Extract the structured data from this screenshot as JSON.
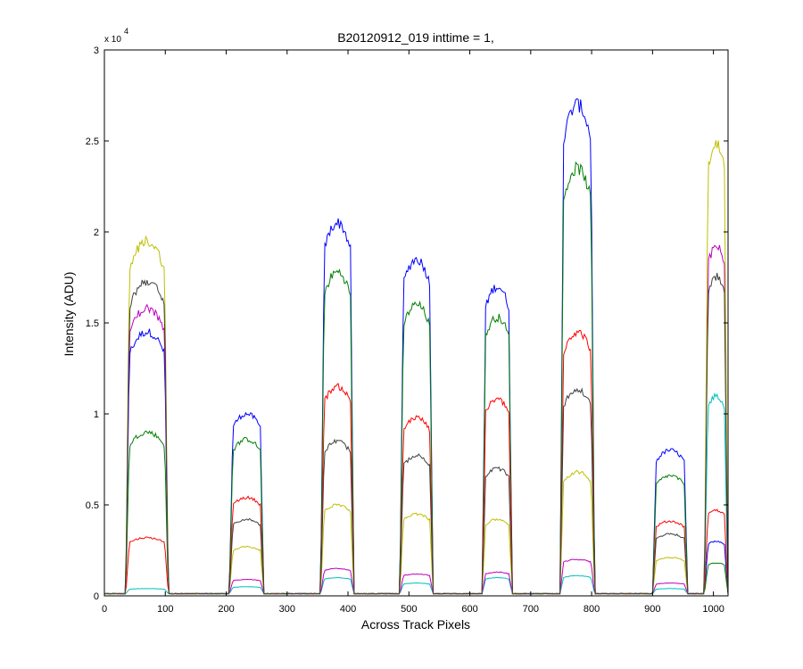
{
  "chart_data": {
    "type": "line",
    "title": "B20120912_019 inttime = 1,",
    "xlabel": "Across Track Pixels",
    "ylabel": "Intensity (ADU)",
    "y_exponent_label": "x 10",
    "y_exponent_power": "4",
    "xlim": [
      0,
      1024
    ],
    "ylim": [
      0,
      3
    ],
    "x_ticks": [
      0,
      100,
      200,
      300,
      400,
      500,
      600,
      700,
      800,
      900,
      1000
    ],
    "x_tick_labels": [
      "0",
      "100",
      "200",
      "300",
      "400",
      "500",
      "600",
      "700",
      "800",
      "900",
      "1000"
    ],
    "y_ticks": [
      0,
      0.5,
      1,
      1.5,
      2,
      2.5,
      3
    ],
    "y_tick_labels": [
      "0",
      "0.5",
      "1",
      "1.5",
      "2",
      "2.5",
      "3"
    ],
    "grid": false,
    "legend": "none",
    "segments": [
      [
        35,
        105
      ],
      [
        205,
        262
      ],
      [
        355,
        410
      ],
      [
        485,
        540
      ],
      [
        620,
        670
      ],
      [
        748,
        805
      ],
      [
        900,
        958
      ],
      [
        985,
        1024
      ]
    ],
    "series": [
      {
        "color": "#0000ff",
        "values": [
          1.45,
          1.0,
          2.05,
          1.85,
          1.7,
          2.7,
          0.8,
          0.3
        ]
      },
      {
        "color": "#008000",
        "values": [
          0.9,
          0.86,
          1.78,
          1.6,
          1.53,
          2.35,
          0.66,
          0.18
        ]
      },
      {
        "color": "#ff0000",
        "values": [
          0.32,
          0.54,
          1.15,
          0.98,
          1.08,
          1.45,
          0.41,
          0.47
        ]
      },
      {
        "color": "#00bfbf",
        "values": [
          0.04,
          0.05,
          0.1,
          0.07,
          0.1,
          0.11,
          0.04,
          1.1
        ]
      },
      {
        "color": "#bf00bf",
        "values": [
          1.58,
          0.09,
          0.15,
          0.12,
          0.13,
          0.2,
          0.07,
          1.92
        ]
      },
      {
        "color": "#bfbf00",
        "values": [
          1.95,
          0.27,
          0.5,
          0.45,
          0.42,
          0.68,
          0.21,
          2.48
        ]
      },
      {
        "color": "#404040",
        "values": [
          1.73,
          0.42,
          0.85,
          0.77,
          0.7,
          1.13,
          0.34,
          1.75
        ]
      }
    ]
  }
}
